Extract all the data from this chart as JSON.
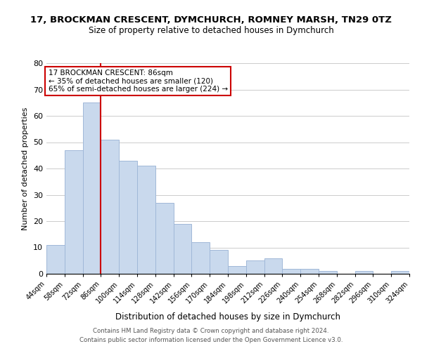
{
  "title": "17, BROCKMAN CRESCENT, DYMCHURCH, ROMNEY MARSH, TN29 0TZ",
  "subtitle": "Size of property relative to detached houses in Dymchurch",
  "xlabel": "Distribution of detached houses by size in Dymchurch",
  "ylabel": "Number of detached properties",
  "bin_labels": [
    "44sqm",
    "58sqm",
    "72sqm",
    "86sqm",
    "100sqm",
    "114sqm",
    "128sqm",
    "142sqm",
    "156sqm",
    "170sqm",
    "184sqm",
    "198sqm",
    "212sqm",
    "226sqm",
    "240sqm",
    "254sqm",
    "268sqm",
    "282sqm",
    "296sqm",
    "310sqm",
    "324sqm"
  ],
  "bar_values": [
    11,
    47,
    65,
    51,
    43,
    41,
    27,
    19,
    12,
    9,
    3,
    5,
    6,
    2,
    2,
    1,
    0,
    1,
    0,
    1
  ],
  "bar_color": "#c9d9ed",
  "bar_edge_color": "#a0b8d8",
  "highlight_line_color": "#cc0000",
  "annotation_title": "17 BROCKMAN CRESCENT: 86sqm",
  "annotation_line1": "← 35% of detached houses are smaller (120)",
  "annotation_line2": "65% of semi-detached houses are larger (224) →",
  "annotation_box_edge": "#cc0000",
  "ylim": [
    0,
    80
  ],
  "yticks": [
    0,
    10,
    20,
    30,
    40,
    50,
    60,
    70,
    80
  ],
  "footer1": "Contains HM Land Registry data © Crown copyright and database right 2024.",
  "footer2": "Contains public sector information licensed under the Open Government Licence v3.0.",
  "background_color": "#ffffff",
  "grid_color": "#cccccc"
}
